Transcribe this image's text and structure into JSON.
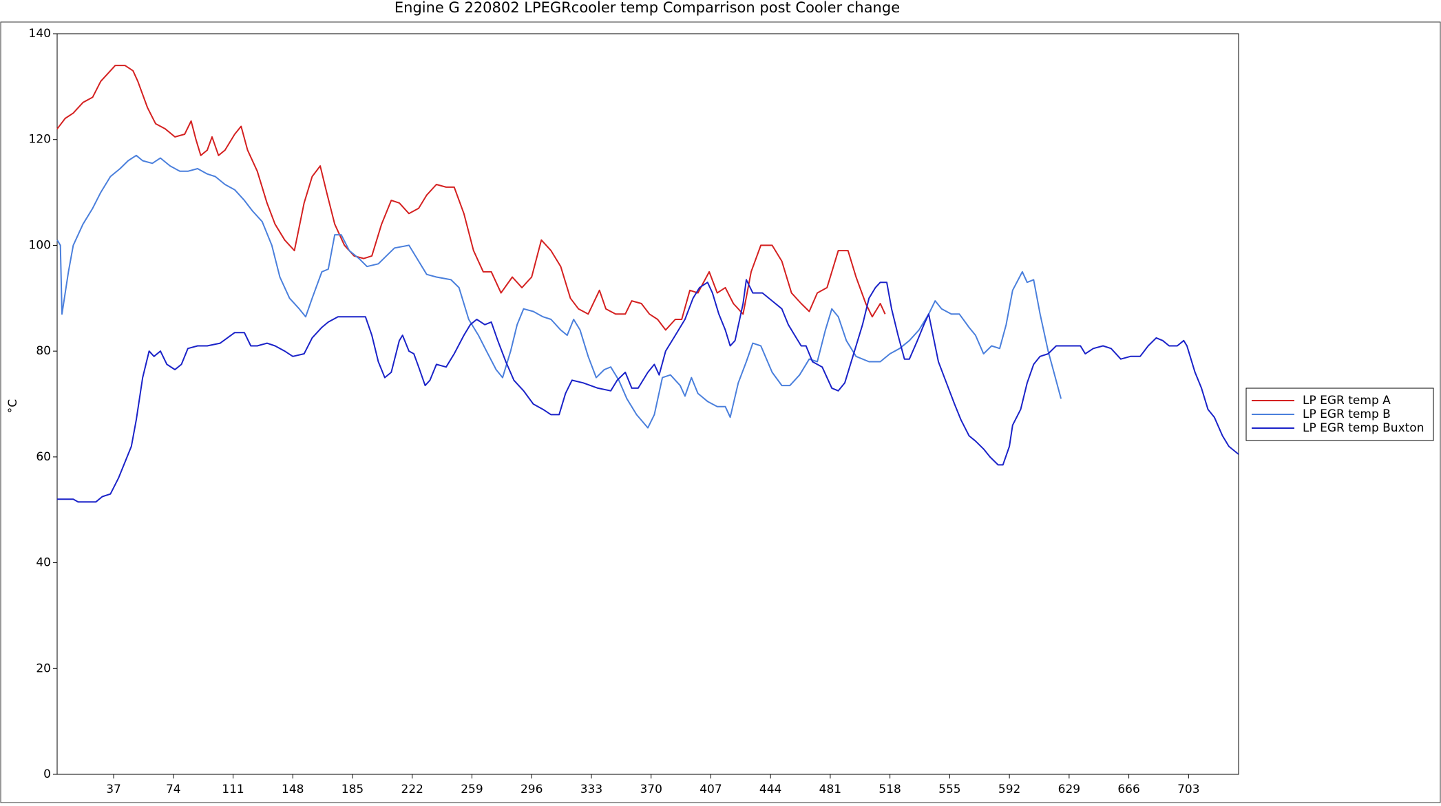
{
  "chart_data": {
    "type": "line",
    "title": "Engine G 220802 LPEGRcooler temp Comparrison post Cooler change",
    "y_label": "°C",
    "xlim": [
      2,
      734
    ],
    "ylim": [
      0,
      140
    ],
    "xticks": [
      37,
      74,
      111,
      148,
      185,
      222,
      259,
      296,
      333,
      370,
      407,
      444,
      481,
      518,
      555,
      592,
      629,
      666,
      703
    ],
    "yticks": [
      0,
      20,
      40,
      60,
      80,
      100,
      120,
      140
    ],
    "grid": false,
    "legend": "right",
    "series": [
      {
        "name": "LP EGR temp A",
        "color": "#d42020",
        "x": [
          2,
          7,
          12,
          18,
          24,
          29,
          35,
          38,
          44,
          49,
          52,
          58,
          63,
          69,
          75,
          81,
          85,
          88,
          91,
          95,
          98,
          102,
          106,
          112,
          116,
          120,
          126,
          132,
          137,
          143,
          149,
          155,
          160,
          165,
          169,
          174,
          180,
          186,
          192,
          197,
          203,
          209,
          214,
          220,
          226,
          231,
          237,
          243,
          248,
          254,
          260,
          266,
          271,
          277,
          284,
          290,
          296,
          302,
          308,
          314,
          320,
          325,
          331,
          338,
          342,
          348,
          354,
          358,
          364,
          369,
          374,
          379,
          385,
          389,
          394,
          399,
          406,
          411,
          416,
          421,
          427,
          432,
          438,
          445,
          451,
          457,
          463,
          468,
          473,
          479,
          486,
          492,
          497,
          503,
          507,
          512,
          515
        ],
        "values": [
          122,
          124,
          125,
          127,
          128,
          131,
          133,
          134,
          134,
          133,
          131,
          126,
          123,
          122,
          120.5,
          121,
          123.5,
          120,
          117,
          118,
          120.5,
          117,
          118,
          121,
          122.5,
          118,
          114,
          108,
          104,
          101,
          99,
          108,
          113,
          115,
          110,
          104,
          100,
          98,
          97.5,
          98,
          104,
          108.5,
          108,
          106,
          107,
          109.5,
          111.5,
          111,
          111,
          106,
          99,
          95,
          95,
          91,
          94,
          92,
          94,
          101,
          99,
          96,
          90,
          88,
          87,
          91.5,
          88,
          87,
          87,
          89.5,
          89,
          87,
          86,
          84,
          86,
          86,
          91.5,
          91,
          95,
          91,
          92,
          89,
          87,
          95,
          100,
          100,
          97,
          91,
          89,
          87.5,
          91,
          92,
          99,
          99,
          94,
          89,
          86.5,
          89,
          87
        ]
      },
      {
        "name": "LP EGR temp B",
        "color": "#4a7fdc",
        "x": [
          2,
          4,
          5,
          9,
          12,
          18,
          24,
          29,
          35,
          41,
          46,
          51,
          55,
          61,
          66,
          72,
          78,
          83,
          89,
          95,
          100,
          106,
          112,
          118,
          123,
          129,
          135,
          140,
          146,
          152,
          156,
          160,
          166,
          170,
          174,
          178,
          183,
          189,
          194,
          201,
          206,
          211,
          220,
          226,
          231,
          237,
          246,
          251,
          257,
          263,
          268,
          274,
          278,
          283,
          287,
          291,
          297,
          303,
          308,
          314,
          318,
          322,
          326,
          331,
          336,
          341,
          345,
          350,
          355,
          361,
          368,
          372,
          377,
          382,
          388,
          391,
          395,
          399,
          405,
          411,
          416,
          419,
          424,
          429,
          433,
          438,
          445,
          451,
          456,
          462,
          468,
          473,
          478,
          482,
          486,
          491,
          497,
          505,
          512,
          518,
          524,
          530,
          536,
          542,
          546,
          550,
          556,
          561,
          567,
          571,
          576,
          581,
          586,
          590,
          594,
          600,
          603,
          607,
          611,
          616,
          620,
          624
        ],
        "values": [
          101,
          100,
          87,
          95,
          100,
          104,
          107,
          110,
          113,
          114.5,
          116,
          117,
          116,
          115.5,
          116.5,
          115,
          114,
          114,
          114.5,
          113.5,
          113,
          111.5,
          110.5,
          108.5,
          106.5,
          104.5,
          100,
          94,
          90,
          88,
          86.5,
          90,
          95,
          95.5,
          102,
          102,
          99,
          97.5,
          96,
          96.5,
          98,
          99.5,
          100,
          97,
          94.5,
          94,
          93.5,
          92,
          86,
          83,
          80,
          76.5,
          75,
          80,
          85,
          88,
          87.5,
          86.5,
          86,
          84,
          83,
          86,
          84,
          79,
          75,
          76.5,
          77,
          74.5,
          71,
          68,
          65.5,
          68,
          75,
          75.5,
          73.5,
          71.5,
          75,
          72,
          70.5,
          69.5,
          69.5,
          67.5,
          74,
          78,
          81.5,
          81,
          76,
          73.5,
          73.5,
          75.5,
          78.5,
          78,
          84,
          88,
          86.5,
          82,
          79,
          78,
          78,
          79.5,
          80.5,
          82,
          84,
          87,
          89.5,
          88,
          87,
          87,
          84.5,
          83,
          79.5,
          81,
          80.5,
          85,
          91.5,
          95,
          93,
          93.5,
          87,
          80,
          75.5,
          71
        ]
      },
      {
        "name": "LP EGR temp Buxton",
        "color": "#1a22c8",
        "x": [
          2,
          12,
          15,
          26,
          30,
          35,
          40,
          44,
          48,
          51,
          55,
          59,
          62,
          66,
          70,
          75,
          79,
          83,
          89,
          95,
          103,
          112,
          118,
          122,
          126,
          132,
          137,
          143,
          148,
          155,
          160,
          166,
          170,
          176,
          182,
          193,
          197,
          201,
          205,
          209,
          214,
          216,
          220,
          223,
          226,
          230,
          233,
          237,
          243,
          248,
          254,
          258,
          262,
          267,
          271,
          275,
          280,
          285,
          291,
          297,
          303,
          308,
          313,
          317,
          321,
          328,
          337,
          345,
          349,
          354,
          358,
          362,
          368,
          372,
          375,
          379,
          385,
          391,
          396,
          400,
          405,
          408,
          412,
          416,
          419,
          422,
          427,
          429,
          433,
          439,
          445,
          451,
          455,
          459,
          463,
          466,
          470,
          476,
          482,
          486,
          490,
          496,
          501,
          505,
          509,
          512,
          516,
          519,
          523,
          527,
          530,
          535,
          539,
          542,
          544,
          548,
          553,
          558,
          562,
          567,
          571,
          576,
          580,
          585,
          588,
          592,
          594,
          599,
          603,
          607,
          611,
          616,
          621,
          636,
          639,
          644,
          650,
          655,
          661,
          667,
          673,
          678,
          683,
          687,
          691,
          696,
          700,
          702,
          707,
          711,
          715,
          719,
          724,
          728,
          734
        ],
        "values": [
          52,
          52,
          51.5,
          51.5,
          52.5,
          53,
          56,
          59,
          62,
          67,
          75,
          80,
          79,
          80,
          77.5,
          76.5,
          77.5,
          80.5,
          81,
          81,
          81.5,
          83.5,
          83.5,
          81,
          81,
          81.5,
          81,
          80,
          79,
          79.5,
          82.5,
          84.5,
          85.5,
          86.5,
          86.5,
          86.5,
          83,
          78,
          75,
          76,
          82,
          83,
          80,
          79.5,
          77,
          73.5,
          74.5,
          77.5,
          77,
          79.5,
          83,
          85,
          86,
          85,
          85.5,
          82,
          78,
          74.5,
          72.5,
          70,
          69,
          68,
          68,
          72,
          74.5,
          74,
          73,
          72.5,
          74.5,
          76,
          73,
          73,
          76,
          77.5,
          75.5,
          80,
          83,
          86,
          90,
          92,
          93,
          91,
          87,
          84,
          81,
          82,
          89,
          93.5,
          91,
          91,
          89.5,
          88,
          85,
          83,
          81,
          81,
          78,
          77,
          73,
          72.5,
          74,
          80,
          85,
          90,
          92,
          93,
          93,
          88,
          83,
          78.5,
          78.5,
          82,
          85,
          87,
          84,
          78,
          74,
          70,
          67,
          64,
          63,
          61.5,
          60,
          58.5,
          58.5,
          62,
          66,
          69,
          74,
          77.5,
          79,
          79.5,
          81,
          81,
          79.5,
          80.5,
          81,
          80.5,
          78.5,
          79,
          79,
          81,
          82.5,
          82,
          81,
          81,
          82,
          81,
          76,
          73,
          69,
          67.5,
          64,
          62,
          60.5
        ]
      }
    ]
  }
}
